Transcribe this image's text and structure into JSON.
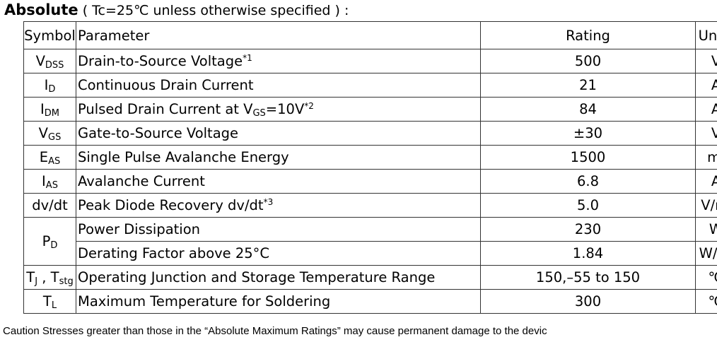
{
  "heading": {
    "bold": "Absolute",
    "condition": " ( Tc=25℃  unless otherwise specified ) :"
  },
  "table": {
    "headers": {
      "symbol": "Symbol",
      "parameter": "Parameter",
      "rating": "Rating",
      "units": "Units"
    },
    "rows": [
      {
        "sym": "V",
        "sym_sub": "DSS",
        "param": "Drain-to-Source Voltage",
        "param_sup": "*1",
        "rating": "500",
        "unit": "V"
      },
      {
        "sym": "I",
        "sym_sub": "D",
        "param": "Continuous Drain Current",
        "rating": "21",
        "unit": "A"
      },
      {
        "sym": "I",
        "sym_sub": "DM",
        "param_pre": "Pulsed Drain Current at V",
        "param_sub": "GS",
        "param_post": "=10V",
        "param_sup": "*2",
        "rating": "84",
        "unit": "A"
      },
      {
        "sym": "V",
        "sym_sub": "GS",
        "param": "Gate-to-Source Voltage",
        "rating": "±30",
        "unit": "V"
      },
      {
        "sym": "E",
        "sym_sub": "AS",
        "param": "Single Pulse Avalanche Energy",
        "rating": "1500",
        "unit": "mJ"
      },
      {
        "sym": "I",
        "sym_sub": "AS",
        "param": "Avalanche Current",
        "rating": "6.8",
        "unit": "A"
      },
      {
        "sym": "dv/dt",
        "param": "Peak Diode Recovery dv/dt",
        "param_sup": "*3",
        "rating": "5.0",
        "unit": "V/ns"
      },
      {
        "sym": "P",
        "sym_sub": "D",
        "param": "Power Dissipation",
        "rating": "230",
        "unit": "W"
      },
      {
        "param": "Derating Factor above 25°C",
        "rating": "1.84",
        "unit": "W/℃"
      },
      {
        "sym": "T",
        "sym_sub": "J",
        "sym_mid": " , T",
        "sym_sub2": "stg",
        "param": "Operating Junction and Storage Temperature Range",
        "rating": "150,–55 to 150",
        "unit": "℃"
      },
      {
        "sym": "T",
        "sym_sub": "L",
        "param": "Maximum Temperature for Soldering",
        "rating": "300",
        "unit": "℃"
      }
    ]
  },
  "caution": "Caution Stresses greater than those in the  “Absolute Maximum Ratings”  may cause permanent damage to the devic"
}
